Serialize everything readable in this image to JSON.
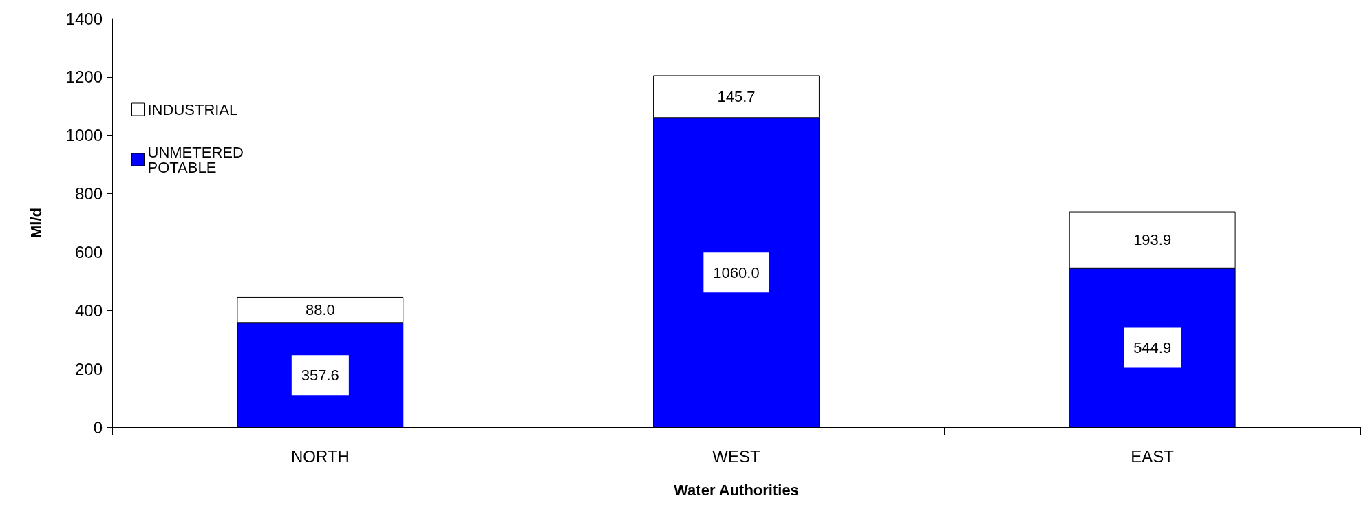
{
  "chart_data": {
    "type": "bar",
    "stacked": true,
    "xlabel": "Water Authorities",
    "ylabel": "Ml/d",
    "categories": [
      "NORTH",
      "WEST",
      "EAST"
    ],
    "series": [
      {
        "name": "UNMETERED POTABLE",
        "color": "#0000ff",
        "values": [
          357.6,
          1060.0,
          544.9
        ],
        "value_labels": [
          "357.6",
          "1060.0",
          "544.9"
        ]
      },
      {
        "name": "INDUSTRIAL",
        "color": "#ffffff",
        "values": [
          88.0,
          145.7,
          193.9
        ],
        "value_labels": [
          "88.0",
          "145.7",
          "193.9"
        ]
      }
    ],
    "ylim": [
      0,
      1400
    ],
    "yticks": [
      0,
      200,
      400,
      600,
      800,
      1000,
      1200,
      1400
    ],
    "grid": false,
    "legend": "top left"
  }
}
